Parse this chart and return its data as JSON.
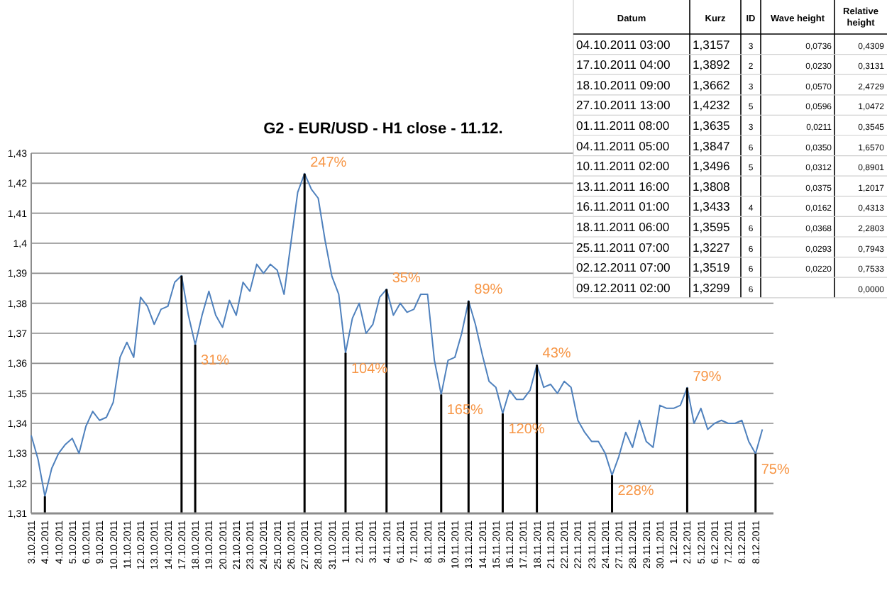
{
  "chart_data": [
    {
      "type": "line",
      "title": "G2 - EUR/USD - H1 close -  11.12.",
      "categories": [
        "3.10.2011",
        null,
        "4.10.2011",
        null,
        "4.10.2011",
        null,
        "5.10.2011",
        null,
        "6.10.2011",
        null,
        "9.10.2011",
        null,
        "10.10.2011",
        null,
        "11.10.2011",
        null,
        "12.10.2011",
        null,
        "13.10.2011",
        null,
        "14.10.2011",
        null,
        "17.10.2011",
        null,
        "18.10.2011",
        null,
        "19.10.2011",
        null,
        "20.10.2011",
        null,
        "21.10.2011",
        null,
        "23.10.2011",
        null,
        "24.10.2011",
        null,
        "25.10.2011",
        null,
        "26.10.2011",
        null,
        "27.10.2011",
        null,
        "28.10.2011",
        null,
        "31.10.2011",
        null,
        "1.11.2011",
        null,
        "2.11.2011",
        null,
        "3.11.2011",
        null,
        "4.11.2011",
        null,
        "6.11.2011",
        null,
        "7.11.2011",
        null,
        "8.11.2011",
        null,
        "9.11.2011",
        null,
        "10.11.2011",
        null,
        "13.11.2011",
        null,
        "14.11.2011",
        null,
        "15.11.2011",
        null,
        "16.11.2011",
        null,
        "17.11.2011",
        null,
        "18.11.2011",
        null,
        "21.11.2011",
        null,
        "22.11.2011",
        null,
        "22.11.2011",
        null,
        "23.11.2011",
        null,
        "24.11.2011",
        null,
        "27.11.2011",
        null,
        "28.11.2011",
        null,
        "29.11.2011",
        null,
        "30.11.2011",
        null,
        "1.12.2011",
        null,
        "2.12.2011",
        null,
        "5.12.2011",
        null,
        "6.12.2011",
        null,
        "7.12.2011",
        null,
        "8.12.2011",
        null,
        "8.12.2011",
        null
      ],
      "series": [
        {
          "type": "line",
          "color": "#4f81bd",
          "values": [
            1.336,
            1.328,
            1.3157,
            1.325,
            1.33,
            1.333,
            1.335,
            1.33,
            1.339,
            1.344,
            1.341,
            1.342,
            1.347,
            1.362,
            1.367,
            1.362,
            1.382,
            1.379,
            1.373,
            1.378,
            1.379,
            1.387,
            1.3892,
            1.376,
            1.3662,
            1.376,
            1.384,
            1.376,
            1.372,
            1.381,
            1.376,
            1.387,
            1.384,
            1.393,
            1.39,
            1.393,
            1.391,
            1.383,
            1.4,
            1.417,
            1.4232,
            1.418,
            1.415,
            1.401,
            1.389,
            1.383,
            1.3635,
            1.375,
            1.38,
            1.37,
            1.373,
            1.382,
            1.3847,
            1.376,
            1.38,
            1.377,
            1.378,
            1.383,
            1.383,
            1.361,
            1.3496,
            1.361,
            1.362,
            1.37,
            1.3808,
            1.373,
            1.363,
            1.354,
            1.352,
            1.3433,
            1.351,
            1.348,
            1.348,
            1.351,
            1.3595,
            1.352,
            1.353,
            1.35,
            1.354,
            1.352,
            1.341,
            1.337,
            1.334,
            1.334,
            1.33,
            1.3227,
            1.329,
            1.337,
            1.332,
            1.341,
            1.334,
            1.332,
            1.346,
            1.345,
            1.345,
            1.346,
            1.3519,
            1.34,
            1.345,
            1.338,
            1.34,
            1.341,
            1.34,
            1.34,
            1.341,
            1.334,
            1.3299,
            1.338
          ]
        },
        {
          "type": "bar",
          "color": "#000000",
          "values": [
            null,
            null,
            1.3157,
            null,
            null,
            null,
            null,
            null,
            null,
            null,
            null,
            null,
            null,
            null,
            null,
            null,
            null,
            null,
            null,
            null,
            null,
            null,
            1.3892,
            null,
            1.3662,
            null,
            null,
            null,
            null,
            null,
            null,
            null,
            null,
            null,
            null,
            null,
            null,
            null,
            null,
            null,
            1.4232,
            null,
            null,
            null,
            null,
            null,
            1.3635,
            null,
            null,
            null,
            null,
            null,
            1.3847,
            null,
            null,
            null,
            null,
            null,
            null,
            null,
            1.3496,
            null,
            null,
            null,
            1.3808,
            null,
            null,
            null,
            null,
            1.3433,
            null,
            null,
            null,
            null,
            1.3595,
            null,
            null,
            null,
            null,
            null,
            null,
            null,
            null,
            null,
            null,
            1.3227,
            null,
            null,
            null,
            null,
            null,
            null,
            null,
            null,
            null,
            null,
            1.3519,
            null,
            null,
            null,
            null,
            null,
            null,
            null,
            null,
            null,
            1.3299,
            null
          ]
        }
      ],
      "annotations": [
        "31%",
        "247%",
        "104%",
        "35%",
        "165%",
        "89%",
        "120%",
        "43%",
        "228%",
        "79%",
        "75%"
      ],
      "ylim": [
        1.31,
        1.43
      ],
      "yticks": [
        {
          "value": 1.31,
          "label": "1,31"
        },
        {
          "value": 1.32,
          "label": "1,32"
        },
        {
          "value": 1.33,
          "label": "1,33"
        },
        {
          "value": 1.34,
          "label": "1,34"
        },
        {
          "value": 1.35,
          "label": "1,35"
        },
        {
          "value": 1.36,
          "label": "1,36"
        },
        {
          "value": 1.37,
          "label": "1,37"
        },
        {
          "value": 1.38,
          "label": "1,38"
        },
        {
          "value": 1.39,
          "label": "1,39"
        },
        {
          "value": 1.4,
          "label": "1,4"
        },
        {
          "value": 1.41,
          "label": "1,41"
        },
        {
          "value": 1.42,
          "label": "1,42"
        },
        {
          "value": 1.43,
          "label": "1,43"
        }
      ],
      "grid": "y"
    },
    {
      "type": "other",
      "categories": [
        "Datum",
        "Kurz",
        "ID",
        "Wave height",
        "Relative height"
      ],
      "cell_labels": [
        [
          "04.10.2011 03:00",
          "1,3157",
          "3",
          "0,0736",
          "0,4309"
        ],
        [
          "17.10.2011 04:00",
          "1,3892",
          "2",
          "0,0230",
          "0,3131"
        ],
        [
          "18.10.2011 09:00",
          "1,3662",
          "3",
          "0,0570",
          "2,4729"
        ],
        [
          "27.10.2011 13:00",
          "1,4232",
          "5",
          "0,0596",
          "1,0472"
        ],
        [
          "01.11.2011 08:00",
          "1,3635",
          "3",
          "0,0211",
          "0,3545"
        ],
        [
          "04.11.2011 05:00",
          "1,3847",
          "6",
          "0,0350",
          "1,6570"
        ],
        [
          "10.11.2011 02:00",
          "1,3496",
          "5",
          "0,0312",
          "0,8901"
        ],
        [
          "13.11.2011 16:00",
          "1,3808",
          null,
          "0,0375",
          "1,2017"
        ],
        [
          "16.11.2011 01:00",
          "1,3433",
          "4",
          "0,0162",
          "0,4313"
        ],
        [
          "18.11.2011 06:00",
          "1,3595",
          "6",
          "0,0368",
          "2,2803"
        ],
        [
          "25.11.2011 07:00",
          "1,3227",
          "6",
          "0,0293",
          "0,7943"
        ],
        [
          "02.12.2011 07:00",
          "1,3519",
          "6",
          "0,0220",
          "0,7533"
        ],
        [
          "09.12.2011 02:00",
          "1,3299",
          "6",
          null,
          "0,0000"
        ]
      ]
    }
  ]
}
